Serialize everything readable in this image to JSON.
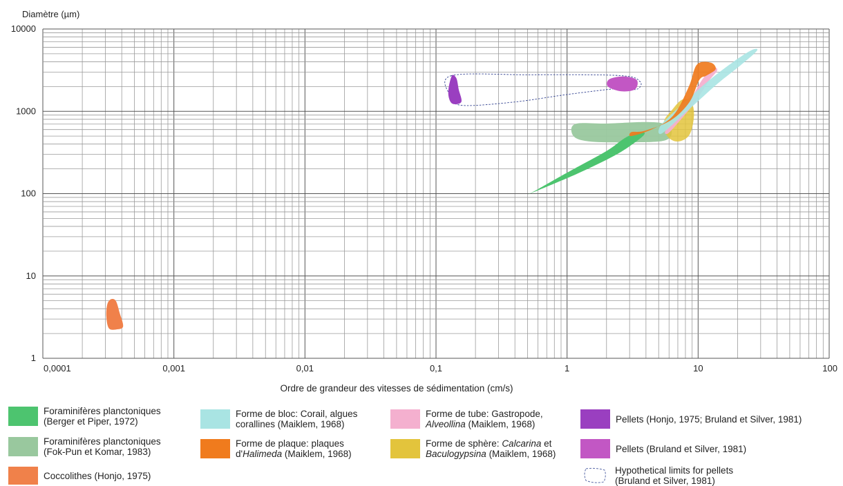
{
  "chart_data": {
    "type": "scatter",
    "title": "",
    "ylabel": "Diamètre (µm)",
    "xlabel": "Ordre de grandeur des vitesses de sédimentation (cm/s)",
    "x_scale": "log",
    "y_scale": "log",
    "xlim": [
      0.0001,
      100
    ],
    "ylim": [
      1,
      10000
    ],
    "x_ticks": [
      "0,0001",
      "0,001",
      "0,01",
      "0,1",
      "1",
      "10",
      "100"
    ],
    "y_ticks": [
      "1",
      "10",
      "100",
      "1000",
      "10000"
    ],
    "grid": true,
    "series": [
      {
        "key": "hypo",
        "name": "Hypothetical limits for pellets (Bruland et Silver, 1981)",
        "color": "#2f3f8f",
        "fill": "none",
        "dashed": true,
        "outline": [
          [
            0.13,
            2700
          ],
          [
            0.5,
            2780
          ],
          [
            2.5,
            2720
          ],
          [
            3.6,
            2300
          ],
          [
            3.4,
            1850
          ],
          [
            2.5,
            1900
          ],
          [
            1.0,
            1600
          ],
          [
            0.4,
            1300
          ],
          [
            0.16,
            1180
          ],
          [
            0.13,
            1500
          ]
        ]
      },
      {
        "key": "foram_fp",
        "name": "Foraminifères planctoniques (Fok-Pun et Komar, 1983)",
        "color": "#99c89e",
        "opacity": 0.95,
        "outline": [
          [
            1.15,
            700
          ],
          [
            2.0,
            710
          ],
          [
            4.0,
            740
          ],
          [
            5.6,
            700
          ],
          [
            6.3,
            560
          ],
          [
            5.5,
            440
          ],
          [
            3.0,
            420
          ],
          [
            1.5,
            430
          ],
          [
            1.12,
            500
          ]
        ]
      },
      {
        "key": "sphere",
        "name": "Forme de sphère: Calcarina et Baculogypsina (Maiklem, 1968)",
        "color": "#e3c43c",
        "opacity": 0.85,
        "outline": [
          [
            6.2,
            1000
          ],
          [
            7.5,
            1380
          ],
          [
            8.8,
            1330
          ],
          [
            9.3,
            900
          ],
          [
            8.6,
            520
          ],
          [
            7.0,
            430
          ],
          [
            5.8,
            500
          ],
          [
            5.5,
            750
          ]
        ]
      },
      {
        "key": "foram_bp",
        "name": "Foraminifères planctoniques (Berger et Piper, 1972)",
        "color": "#4dc46f",
        "opacity": 1,
        "outline": [
          [
            0.52,
            100
          ],
          [
            1.2,
            175
          ],
          [
            2.3,
            290
          ],
          [
            3.3,
            420
          ],
          [
            3.9,
            530
          ],
          [
            3.6,
            560
          ],
          [
            2.8,
            480
          ],
          [
            2.0,
            330
          ],
          [
            1.0,
            180
          ],
          [
            0.58,
            110
          ]
        ]
      },
      {
        "key": "tube",
        "name": "Forme de tube: Gastropode, Alveollina (Maiklem, 1968)",
        "color": "#f4b0cf",
        "opacity": 0.95,
        "outline": [
          [
            5.7,
            600
          ],
          [
            8.0,
            1100
          ],
          [
            10.5,
            2300
          ],
          [
            12.8,
            3350
          ],
          [
            14.0,
            3150
          ],
          [
            12.0,
            2300
          ],
          [
            9.5,
            1300
          ],
          [
            7.2,
            760
          ],
          [
            5.9,
            540
          ]
        ]
      },
      {
        "key": "bloc",
        "name": "Forme de bloc: Corail, algues corallines (Maiklem, 1968)",
        "color": "#a9e4e3",
        "opacity": 0.9,
        "outline": [
          [
            5.3,
            540
          ],
          [
            8.5,
            1050
          ],
          [
            14.0,
            2150
          ],
          [
            21.0,
            3600
          ],
          [
            28.0,
            5400
          ],
          [
            26.0,
            5600
          ],
          [
            19.0,
            4100
          ],
          [
            12.0,
            2350
          ],
          [
            7.5,
            1200
          ],
          [
            5.2,
            680
          ]
        ]
      },
      {
        "key": "plaque",
        "name": "Forme de plaque: plaques d'Halimeda (Maiklem, 1968)",
        "color": "#f07b1d",
        "opacity": 0.92,
        "outline": [
          [
            3.1,
            500
          ],
          [
            4.5,
            610
          ],
          [
            6.5,
            900
          ],
          [
            8.5,
            2000
          ],
          [
            9.8,
            3700
          ],
          [
            12.5,
            3900
          ],
          [
            13.6,
            3250
          ],
          [
            11.5,
            2700
          ],
          [
            10.2,
            2400
          ],
          [
            8.6,
            1300
          ],
          [
            6.2,
            780
          ],
          [
            3.9,
            580
          ],
          [
            3.1,
            560
          ]
        ]
      },
      {
        "key": "cocco",
        "name": "Coccolithes (Honjo, 1975)",
        "color": "#f0814a",
        "opacity": 1,
        "outline": [
          [
            0.00033,
            5.2
          ],
          [
            0.00036,
            5.0
          ],
          [
            0.000385,
            3.6
          ],
          [
            0.00041,
            2.45
          ],
          [
            0.00037,
            2.25
          ],
          [
            0.00032,
            2.3
          ],
          [
            0.000305,
            3.2
          ],
          [
            0.00031,
            4.5
          ]
        ]
      },
      {
        "key": "pellets_h",
        "name": "Pellets (Honjo, 1975; Bruland et Silver, 1981)",
        "color": "#9a3fc0",
        "opacity": 1,
        "outline": [
          [
            0.132,
            2700
          ],
          [
            0.143,
            2520
          ],
          [
            0.149,
            1850
          ],
          [
            0.156,
            1300
          ],
          [
            0.132,
            1250
          ],
          [
            0.124,
            1700
          ]
        ]
      },
      {
        "key": "pellets_bs",
        "name": "Pellets (Bruland et Silver, 1981)",
        "color": "#c257c4",
        "opacity": 1,
        "outline": [
          [
            2.1,
            2450
          ],
          [
            2.7,
            2650
          ],
          [
            3.4,
            2400
          ],
          [
            3.3,
            1850
          ],
          [
            2.6,
            1750
          ],
          [
            2.05,
            2000
          ]
        ]
      }
    ]
  },
  "legend": [
    {
      "key": "foram_bp",
      "line1": "Foraminifères planctoniques",
      "line2": "(Berger et Piper, 1972)",
      "color": "#4dc46f"
    },
    {
      "key": "foram_fp",
      "line1": "Foraminifères planctoniques",
      "line2": "(Fok-Pun et Komar, 1983)",
      "color": "#99c89e"
    },
    {
      "key": "cocco",
      "line1": "Coccolithes (Honjo, 1975)",
      "line2": "",
      "color": "#f0814a"
    },
    {
      "key": "bloc",
      "line1": "Forme de bloc: Corail, algues",
      "line2": "corallines (Maiklem, 1968)",
      "color": "#a9e4e3"
    },
    {
      "key": "plaque",
      "line1": "Forme de plaque: plaques",
      "line2_pre": "d'",
      "line2_it": "Halimeda",
      "line2_post": " (Maiklem, 1968)",
      "color": "#f07b1d"
    },
    {
      "key": "tube",
      "line1": "Forme de tube: Gastropode,",
      "line2_it": "Alveollina",
      "line2_post": " (Maiklem, 1968)",
      "color": "#f4b0cf"
    },
    {
      "key": "sphere",
      "line1_pre": "Forme de sphère: ",
      "line1_it": "Calcarina",
      "line1_post": " et",
      "line2_it": "Baculogypsina",
      "line2_post": " (Maiklem, 1968)",
      "color": "#e3c43c"
    },
    {
      "key": "pellets_h",
      "line1": "Pellets (Honjo, 1975; Bruland et Silver, 1981)",
      "line2": "",
      "color": "#9a3fc0"
    },
    {
      "key": "pellets_bs",
      "line1": "Pellets (Bruland et Silver, 1981)",
      "line2": "",
      "color": "#c257c4"
    },
    {
      "key": "hypo",
      "line1": "Hypothetical limits for pellets",
      "line2": "(Bruland et Silver, 1981)",
      "color": "#2f3f8f"
    }
  ]
}
